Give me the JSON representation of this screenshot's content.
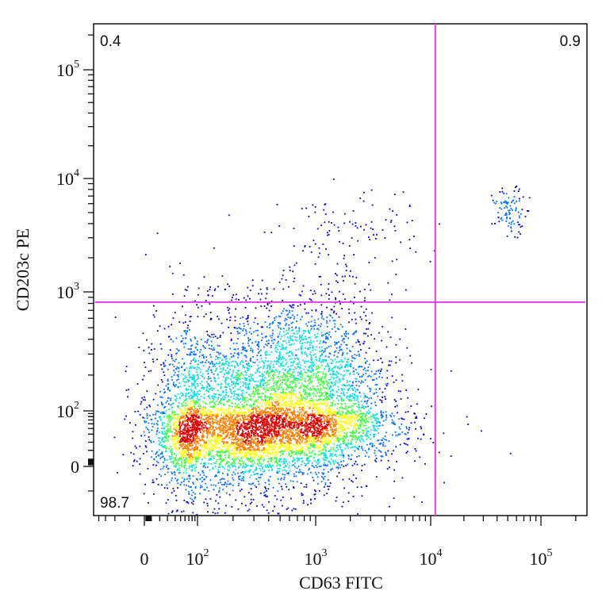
{
  "chart_data": {
    "type": "scatter",
    "style": "flow-cytometry pseudocolor density dot plot",
    "xlabel": "CD63 FITC",
    "ylabel": "CD203c PE",
    "x_scale": "biexponential (logicle)",
    "y_scale": "biexponential (logicle)",
    "xlim": [
      -100,
      250000
    ],
    "ylim": [
      -40,
      250000
    ],
    "x_ticks": [
      {
        "value": 0,
        "base": "0",
        "exp": ""
      },
      {
        "value": 100,
        "base": "10",
        "exp": "2"
      },
      {
        "value": 1000,
        "base": "10",
        "exp": "3"
      },
      {
        "value": 10000,
        "base": "10",
        "exp": "4"
      },
      {
        "value": 100000,
        "base": "10",
        "exp": "5"
      }
    ],
    "y_ticks": [
      {
        "value": 0,
        "base": "0",
        "exp": ""
      },
      {
        "value": 100,
        "base": "10",
        "exp": "2"
      },
      {
        "value": 1000,
        "base": "10",
        "exp": "3"
      },
      {
        "value": 10000,
        "base": "10",
        "exp": "4"
      },
      {
        "value": 100000,
        "base": "10",
        "exp": "5"
      }
    ],
    "gates": {
      "x_threshold": 11000,
      "y_threshold": 820,
      "color": "#e040e0"
    },
    "quadrant_percentages": {
      "upper_left": "0.4",
      "upper_right": "0.9",
      "lower_left": "98.7",
      "lower_right": ""
    },
    "populations": [
      {
        "name": "",
        "center_x": 230,
        "center_y": 55,
        "spread_x_decades": 0.55,
        "spread_y_decades": 0.5,
        "weight": 0.62
      },
      {
        "name": "",
        "center_x": 900,
        "center_y": 120,
        "spread_x_decades": 0.35,
        "spread_y_decades": 0.45,
        "weight": 0.25
      },
      {
        "name": "",
        "center_x": 2000,
        "center_y": 3200,
        "spread_x_decades": 0.3,
        "spread_y_decades": 0.2,
        "weight": 0.012
      },
      {
        "name": "",
        "center_x": 52000,
        "center_y": 5200,
        "spread_x_decades": 0.08,
        "spread_y_decades": 0.1,
        "weight": 0.011
      }
    ],
    "density_colors": [
      "#0000c8",
      "#0070ff",
      "#00e0e0",
      "#40ff40",
      "#ffff00",
      "#ff8000",
      "#e00000"
    ],
    "grid": false,
    "legend": "none"
  }
}
